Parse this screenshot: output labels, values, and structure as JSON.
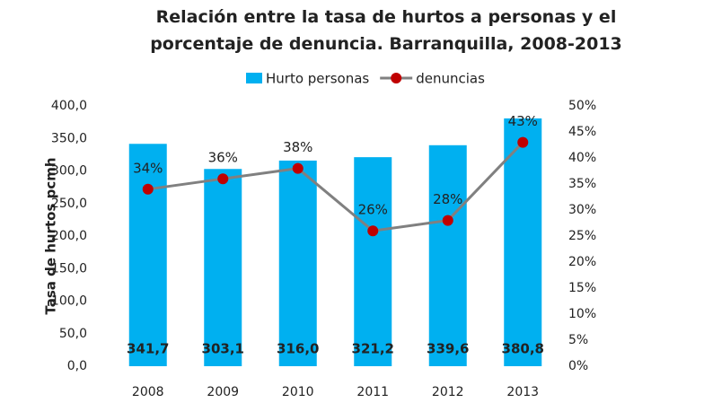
{
  "chart_data": {
    "type": "bar",
    "title": "Relación entre la tasa de hurtos a personas y el porcentaje de denuncia. Barranquilla, 2008-2013",
    "ylabel": "Tasa de hurtos pcmh",
    "categories": [
      "2008",
      "2009",
      "2010",
      "2011",
      "2012",
      "2013"
    ],
    "series": [
      {
        "name": "Hurto personas",
        "type": "bar",
        "color": "#00b0f0",
        "values": [
          341.7,
          303.1,
          316.0,
          321.2,
          339.6,
          380.8
        ],
        "value_labels": [
          "341,7",
          "303,1",
          "316,0",
          "321,2",
          "339,6",
          "380,8"
        ]
      },
      {
        "name": "denuncias",
        "type": "line",
        "axis": "y2",
        "color": "#808080",
        "marker_color": "#c00000",
        "values": [
          34,
          36,
          38,
          26,
          28,
          43
        ],
        "value_labels": [
          "34%",
          "36%",
          "38%",
          "26%",
          "28%",
          "43%"
        ]
      }
    ],
    "ylim": [
      0,
      400
    ],
    "yticks": [
      {
        "value": 0,
        "label": "0,0"
      },
      {
        "value": 50,
        "label": "50,0"
      },
      {
        "value": 100,
        "label": "100,0"
      },
      {
        "value": 150,
        "label": "150,0"
      },
      {
        "value": 200,
        "label": "200,0"
      },
      {
        "value": 250,
        "label": "250,0"
      },
      {
        "value": 300,
        "label": "300,0"
      },
      {
        "value": 350,
        "label": "350,0"
      },
      {
        "value": 400,
        "label": "400,0"
      }
    ],
    "y2lim": [
      0,
      50
    ],
    "y2ticks": [
      {
        "value": 0,
        "label": "0%"
      },
      {
        "value": 5,
        "label": "5%"
      },
      {
        "value": 10,
        "label": "10%"
      },
      {
        "value": 15,
        "label": "15%"
      },
      {
        "value": 20,
        "label": "20%"
      },
      {
        "value": 25,
        "label": "25%"
      },
      {
        "value": 30,
        "label": "30%"
      },
      {
        "value": 35,
        "label": "35%"
      },
      {
        "value": 40,
        "label": "40%"
      },
      {
        "value": 45,
        "label": "45%"
      },
      {
        "value": 50,
        "label": "50%"
      }
    ],
    "grid": false,
    "legend": "top"
  }
}
